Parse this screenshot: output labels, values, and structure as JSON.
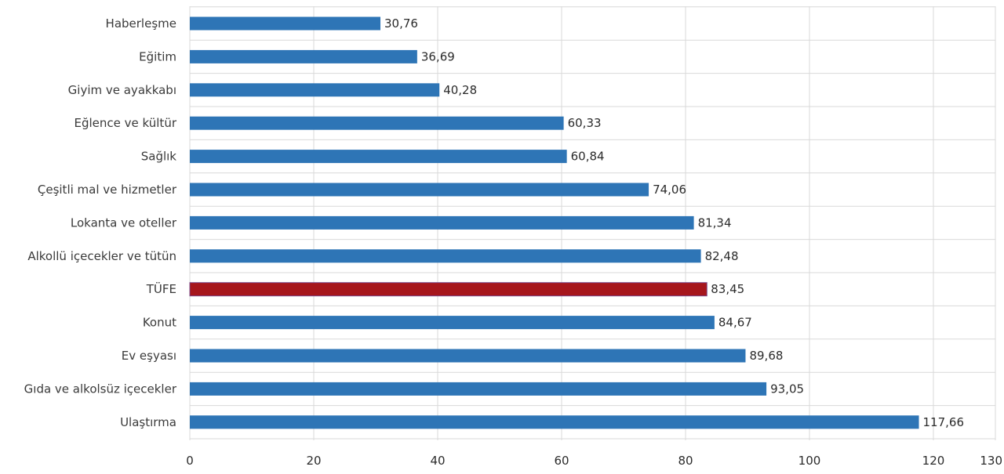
{
  "chart_data": {
    "type": "bar",
    "orientation": "horizontal",
    "categories": [
      "Haberleşme",
      "Eğitim",
      "Giyim ve ayakkabı",
      "Eğlence ve kültür",
      "Sağlık",
      "Çeşitli mal ve hizmetler",
      "Lokanta ve oteller",
      "Alkollü içecekler ve tütün",
      "TÜFE",
      "Konut",
      "Ev eşyası",
      "Gıda ve alkolsüz içecekler",
      "Ulaştırma"
    ],
    "values": [
      30.76,
      36.69,
      40.28,
      60.33,
      60.84,
      74.06,
      81.34,
      82.48,
      83.45,
      84.67,
      89.68,
      93.05,
      117.66
    ],
    "value_labels": [
      "30,76",
      "36,69",
      "40,28",
      "60,33",
      "60,84",
      "74,06",
      "81,34",
      "82,48",
      "83,45",
      "84,67",
      "89,68",
      "93,05",
      "117,66"
    ],
    "highlight_category": "TÜFE",
    "xlim": [
      0,
      130
    ],
    "x_ticks": [
      0,
      20,
      40,
      60,
      80,
      100,
      120,
      130
    ],
    "x_tick_labels": [
      "0",
      "20",
      "40",
      "60",
      "80",
      "100",
      "120",
      "130"
    ],
    "grid": true,
    "title": "",
    "xlabel": "",
    "ylabel": "",
    "colors": {
      "bar": "#2e75b6",
      "highlight": "#a6161c",
      "grid": "#d9d9d9"
    }
  }
}
